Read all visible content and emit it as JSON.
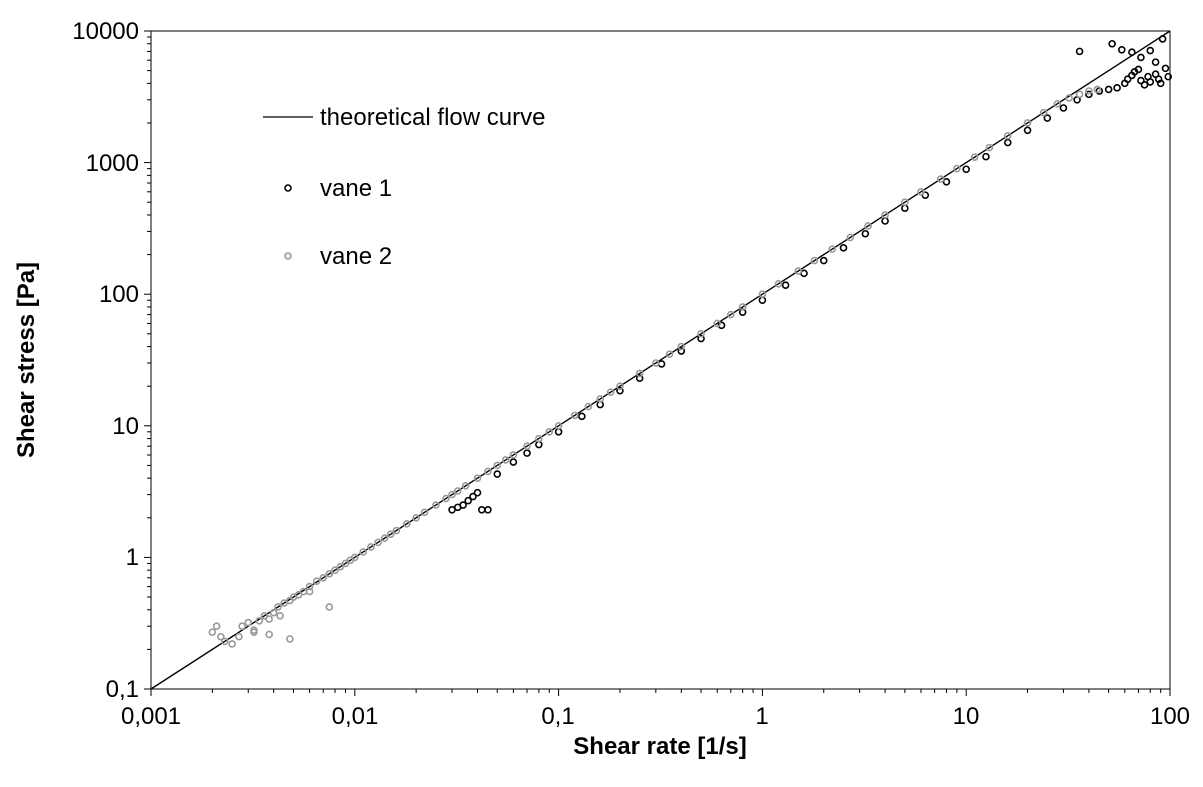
{
  "chart_data": {
    "type": "scatter",
    "title": "",
    "xlabel": "Shear rate [1/s]",
    "ylabel": "Shear stress [Pa]",
    "x_scale": "log",
    "y_scale": "log",
    "xlim": [
      0.001,
      100
    ],
    "ylim": [
      0.1,
      10000
    ],
    "x_ticks": [
      "0,001",
      "0,01",
      "0,1",
      "1",
      "10",
      "100"
    ],
    "y_ticks": [
      "0,1",
      "1",
      "10",
      "100",
      "1000",
      "10000"
    ],
    "grid": false,
    "legend_position": "top-left",
    "series": [
      {
        "name": "theoretical flow curve",
        "kind": "line",
        "color": "#000000",
        "x": [
          0.001,
          100
        ],
        "y": [
          0.1,
          10000
        ]
      },
      {
        "name": "vane 1",
        "kind": "markers",
        "color": "#000000",
        "x": [
          0.03,
          0.032,
          0.034,
          0.036,
          0.038,
          0.04,
          0.042,
          0.045,
          0.05,
          0.06,
          0.07,
          0.08,
          0.1,
          0.13,
          0.16,
          0.2,
          0.25,
          0.32,
          0.4,
          0.5,
          0.63,
          0.8,
          1.0,
          1.3,
          1.6,
          2.0,
          2.5,
          3.2,
          4.0,
          5.0,
          6.3,
          8.0,
          10,
          12.5,
          16,
          20,
          25,
          30,
          35,
          40,
          45,
          50,
          55,
          60,
          62,
          65,
          67,
          70,
          72,
          75,
          78,
          80,
          85,
          88,
          90,
          95,
          98,
          36,
          52,
          58,
          65,
          72,
          80,
          85,
          92
        ],
        "y": [
          2.3,
          2.4,
          2.5,
          2.7,
          2.9,
          3.1,
          2.3,
          2.3,
          4.3,
          5.3,
          6.2,
          7.2,
          9.0,
          11.8,
          14.5,
          18.5,
          23.0,
          29.5,
          37.0,
          46.0,
          58.0,
          73.0,
          90.0,
          117,
          144,
          180,
          225,
          288,
          360,
          450,
          565,
          715,
          890,
          1110,
          1420,
          1760,
          2180,
          2600,
          3000,
          3300,
          3500,
          3600,
          3700,
          4000,
          4300,
          4600,
          4900,
          5100,
          4200,
          3900,
          4500,
          4100,
          4700,
          4300,
          4000,
          5200,
          4500,
          7000,
          8000,
          7200,
          6900,
          6300,
          7100,
          5800,
          8700
        ]
      },
      {
        "name": "vane 2",
        "kind": "markers",
        "color": "#999999",
        "x": [
          0.002,
          0.0021,
          0.0022,
          0.0023,
          0.0025,
          0.0027,
          0.0028,
          0.003,
          0.0032,
          0.0034,
          0.0036,
          0.0038,
          0.004,
          0.0042,
          0.0045,
          0.0048,
          0.005,
          0.0053,
          0.0056,
          0.006,
          0.0065,
          0.007,
          0.0075,
          0.008,
          0.0085,
          0.009,
          0.0095,
          0.01,
          0.011,
          0.012,
          0.013,
          0.014,
          0.015,
          0.016,
          0.018,
          0.02,
          0.022,
          0.025,
          0.028,
          0.03,
          0.032,
          0.035,
          0.04,
          0.045,
          0.05,
          0.055,
          0.06,
          0.07,
          0.08,
          0.09,
          0.1,
          0.12,
          0.14,
          0.16,
          0.18,
          0.2,
          0.25,
          0.3,
          0.35,
          0.4,
          0.5,
          0.6,
          0.7,
          0.8,
          1.0,
          1.2,
          1.5,
          1.8,
          2.2,
          2.7,
          3.3,
          4.0,
          5.0,
          6.0,
          7.5,
          9.0,
          11,
          13,
          16,
          20,
          24,
          28,
          32,
          36,
          40,
          44,
          0.0048,
          0.0038,
          0.0075,
          0.0032,
          0.0043,
          0.006
        ],
        "y": [
          0.27,
          0.3,
          0.25,
          0.23,
          0.22,
          0.25,
          0.3,
          0.32,
          0.28,
          0.33,
          0.36,
          0.34,
          0.38,
          0.42,
          0.45,
          0.47,
          0.5,
          0.52,
          0.55,
          0.6,
          0.66,
          0.7,
          0.75,
          0.8,
          0.85,
          0.9,
          0.95,
          1.0,
          1.1,
          1.2,
          1.3,
          1.4,
          1.5,
          1.6,
          1.8,
          2.0,
          2.2,
          2.5,
          2.8,
          3.0,
          3.2,
          3.5,
          4.0,
          4.5,
          5.0,
          5.5,
          6.0,
          7.0,
          8.0,
          9.0,
          10.0,
          12.0,
          14.0,
          16.0,
          18.0,
          20.0,
          25.0,
          30.0,
          35.0,
          40.0,
          50.0,
          60.0,
          70.0,
          80.0,
          100,
          120,
          150,
          180,
          220,
          270,
          330,
          400,
          500,
          600,
          750,
          900,
          1100,
          1300,
          1600,
          2000,
          2400,
          2800,
          3100,
          3300,
          3500,
          3600,
          0.24,
          0.26,
          0.42,
          0.27,
          0.36,
          0.55
        ]
      }
    ]
  }
}
